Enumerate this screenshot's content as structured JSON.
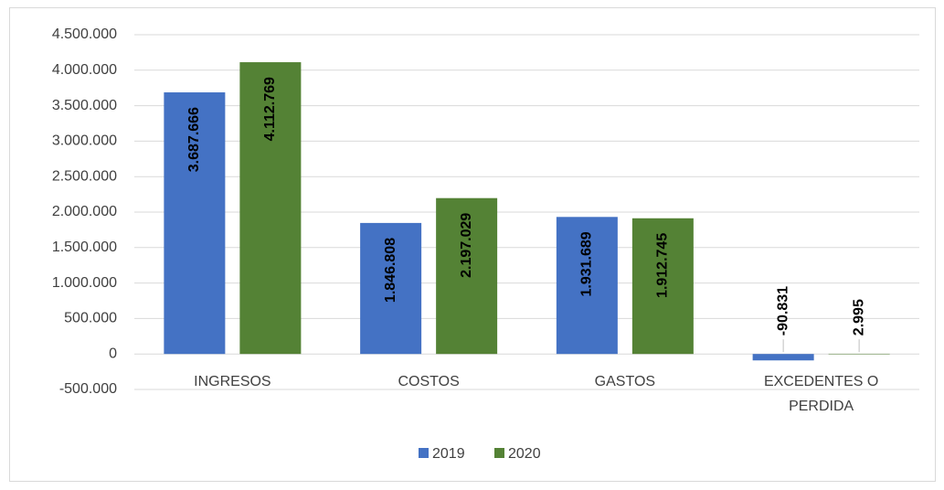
{
  "chart_data": {
    "type": "bar",
    "categories": [
      "INGRESOS",
      "COSTOS",
      "GASTOS",
      "EXCEDENTES O PERDIDA"
    ],
    "series": [
      {
        "name": "2019",
        "color": "#4472c4",
        "values": [
          3687666,
          1846808,
          1931689,
          -90831
        ],
        "value_labels": [
          "3.687.666",
          "1.846.808",
          "1.931.689",
          "-90.831"
        ]
      },
      {
        "name": "2020",
        "color": "#548235",
        "values": [
          4112769,
          2197029,
          1912745,
          2995
        ],
        "value_labels": [
          "4.112.769",
          "2.197.029",
          "1.912.745",
          "2.995"
        ]
      }
    ],
    "ylim": [
      -500000,
      4500000
    ],
    "yticks": [
      {
        "value": -500000,
        "label": "-500.000"
      },
      0,
      {
        "value": 500000,
        "label": "500.000"
      },
      {
        "value": 1000000,
        "label": "1.000.000"
      },
      {
        "value": 1500000,
        "label": "1.500.000"
      },
      {
        "value": 2000000,
        "label": "2.000.000"
      },
      {
        "value": 2500000,
        "label": "2.500.000"
      },
      {
        "value": 3000000,
        "label": "3.000.000"
      },
      {
        "value": 3500000,
        "label": "3.500.000"
      },
      {
        "value": 4000000,
        "label": "4.000.000"
      },
      {
        "value": 4500000,
        "label": "4.500.000"
      }
    ],
    "grid": true,
    "legend": "bottom"
  }
}
